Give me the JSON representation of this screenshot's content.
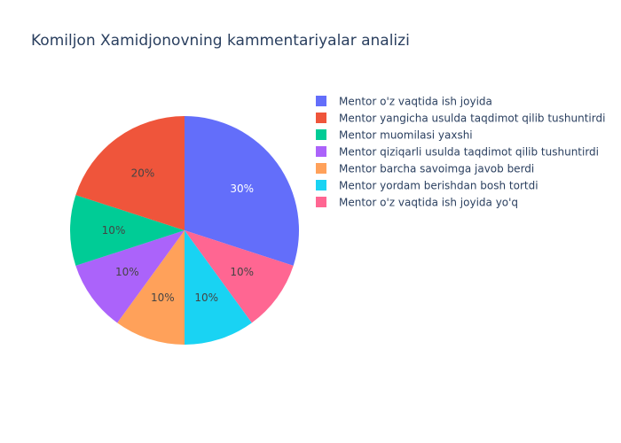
{
  "chart_data": {
    "type": "pie",
    "title": "Komiljon Xamidjonovning kammentariyalar analizi",
    "labels": [
      " Mentor o'z vaqtida ish joyida",
      "Mentor yangicha usulda taqdimot qilib tushuntirdi",
      "Mentor muomilasi yaxshi",
      "Mentor qiziqarli usulda taqdimot qilib tushuntirdi",
      "Mentor barcha savoimga javob berdi",
      "Mentor yordam berishdan bosh tortdi",
      "Mentor o'z vaqtida ish joyida yo'q"
    ],
    "values": [
      30,
      20,
      10,
      10,
      10,
      10,
      10
    ],
    "value_labels": [
      "30%",
      "20%",
      "10%",
      "10%",
      "10%",
      "10%",
      "10%"
    ],
    "slice_order_clockwise_from_top": [
      0,
      6,
      5,
      4,
      3,
      2,
      1
    ],
    "colors": [
      "#636efa",
      "#EF553B",
      "#00cc96",
      "#ab63fa",
      "#FFA15A",
      "#19d3f3",
      "#FF6692"
    ],
    "label_colors": [
      "#ffffff",
      "#444444",
      "#444444",
      "#444444",
      "#444444",
      "#444444",
      "#444444"
    ],
    "legend_position": "top-right"
  }
}
